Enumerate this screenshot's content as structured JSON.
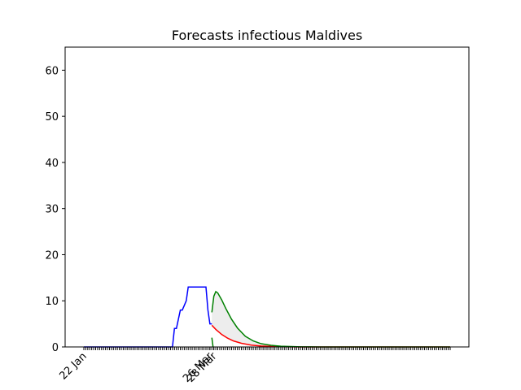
{
  "chart_data": {
    "type": "line",
    "title": "Forecasts infectious Maldives",
    "xlim": [
      -9.5,
      195.5
    ],
    "ylim": [
      0,
      65
    ],
    "yticks": [
      0,
      10,
      20,
      30,
      40,
      50,
      60
    ],
    "xticks": [
      {
        "value": 0,
        "label": "22 Jan"
      },
      {
        "value": 64,
        "label": "26 Mar"
      },
      {
        "value": 66,
        "label": "28 Mar"
      }
    ],
    "xminor": [
      0,
      1,
      2,
      3,
      4,
      5,
      6,
      7,
      8,
      9,
      10,
      11,
      12,
      13,
      14,
      15,
      16,
      17,
      18,
      19,
      20,
      21,
      22,
      23,
      24,
      25,
      26,
      27,
      28,
      29,
      30,
      31,
      32,
      33,
      34,
      35,
      36,
      37,
      38,
      39,
      40,
      41,
      42,
      43,
      44,
      45,
      46,
      47,
      48,
      49,
      50,
      51,
      52,
      53,
      54,
      55,
      56,
      57,
      58,
      59,
      60,
      61,
      62,
      63,
      64,
      65,
      66,
      67,
      68,
      69,
      70,
      71,
      72,
      73,
      74,
      75,
      76,
      77,
      78,
      79,
      80,
      81,
      82,
      83,
      84,
      85,
      86,
      87,
      88,
      89,
      90,
      91,
      92,
      93,
      94,
      95,
      96,
      97,
      98,
      99,
      100,
      101,
      102,
      103,
      104,
      105,
      106,
      107,
      108,
      109,
      110,
      111,
      112,
      113,
      114,
      115,
      116,
      117,
      118,
      119,
      120,
      121,
      122,
      123,
      124,
      125,
      126,
      127,
      128,
      129,
      130,
      131,
      132,
      133,
      134,
      135,
      136,
      137,
      138,
      139,
      140,
      141,
      142,
      143,
      144,
      145,
      146,
      147,
      148,
      149,
      150,
      151,
      152,
      153,
      154,
      155,
      156,
      157,
      158,
      159,
      160,
      161,
      162,
      163,
      164,
      165,
      166,
      167,
      168,
      169,
      170,
      171,
      172,
      173,
      174,
      175,
      176,
      177,
      178,
      179,
      180,
      181,
      182,
      183,
      184,
      185,
      186
    ],
    "shade": {
      "lower": 1,
      "upper": 2,
      "color": "#ededed"
    },
    "series": [
      {
        "color": "#0000ff",
        "x": [
          0,
          45,
          46,
          47,
          48,
          49,
          50,
          51,
          52,
          53,
          61,
          62,
          63,
          64,
          65
        ],
        "values": [
          0,
          0,
          4,
          4,
          6,
          8,
          8,
          9,
          10,
          13,
          13,
          13,
          8,
          5,
          5
        ]
      },
      {
        "color": "#ff0000",
        "x": [
          65,
          67,
          70,
          73,
          76,
          80,
          85,
          90,
          95,
          100,
          110,
          130,
          186
        ],
        "values": [
          4.7,
          3.8,
          2.7,
          1.9,
          1.3,
          0.8,
          0.4,
          0.2,
          0.1,
          0.05,
          0,
          0,
          0
        ]
      },
      {
        "color": "#008000",
        "x": [
          65,
          66,
          67,
          68,
          70,
          72,
          75,
          78,
          82,
          86,
          90,
          95,
          100,
          110,
          120,
          140,
          186
        ],
        "values": [
          7.5,
          11,
          12,
          11.7,
          10.2,
          8.4,
          6,
          4.1,
          2.3,
          1.3,
          0.7,
          0.35,
          0.15,
          0.03,
          0,
          0,
          0
        ]
      },
      {
        "color": "#008000",
        "x": [
          65,
          65.6
        ],
        "values": [
          2,
          0
        ]
      }
    ]
  }
}
